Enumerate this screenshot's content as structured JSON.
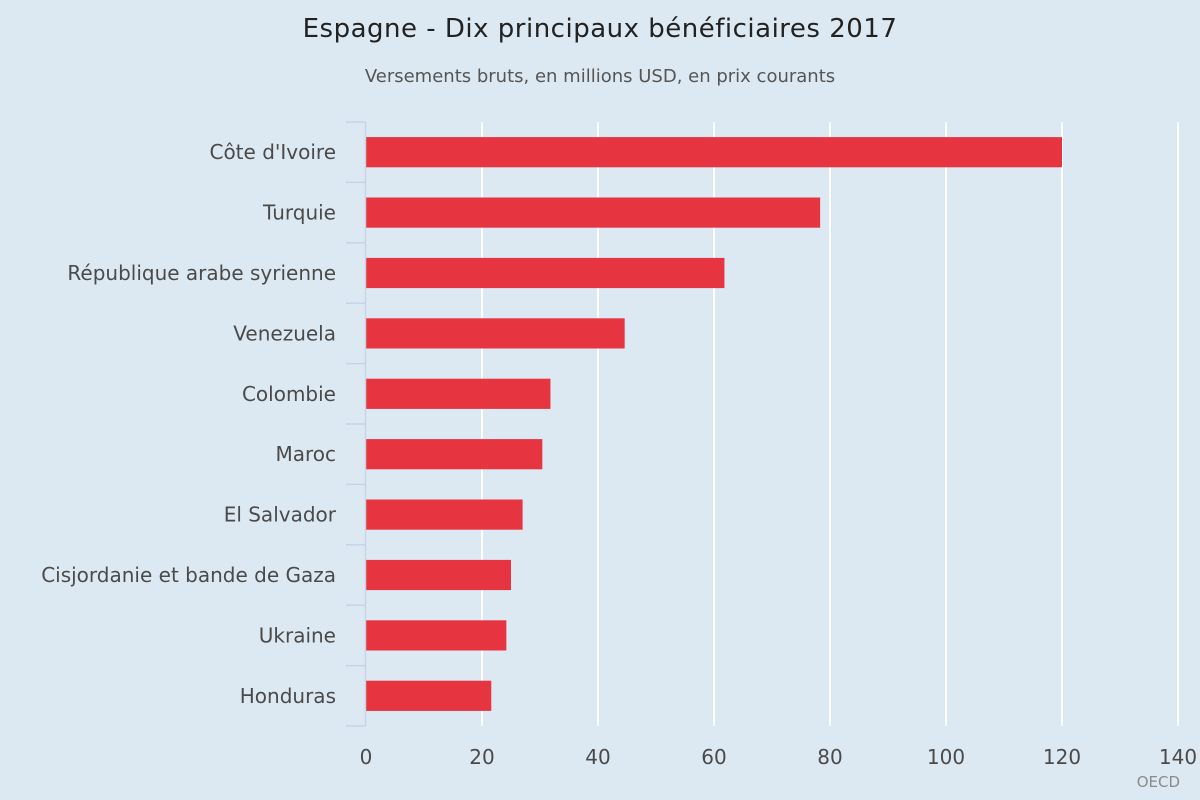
{
  "chart_data": {
    "type": "bar",
    "orientation": "horizontal",
    "title": "Espagne - Dix principaux bénéficiaires 2017",
    "subtitle": "Versements bruts, en millions USD, en prix courants",
    "categories": [
      "Côte d'Ivoire",
      "Turquie",
      "République arabe syrienne",
      "Venezuela",
      "Colombie",
      "Maroc",
      "El Salvador",
      "Cisjordanie et bande de Gaza",
      "Ukraine",
      "Honduras"
    ],
    "values": [
      120,
      78.3,
      61.8,
      44.6,
      31.8,
      30.4,
      27.0,
      25.0,
      24.2,
      21.6
    ],
    "xlim": [
      0,
      140
    ],
    "xticks": [
      0,
      20,
      40,
      60,
      80,
      100,
      120,
      140
    ],
    "grid": true,
    "bar_color": "#e63541",
    "credit": "OECD"
  }
}
